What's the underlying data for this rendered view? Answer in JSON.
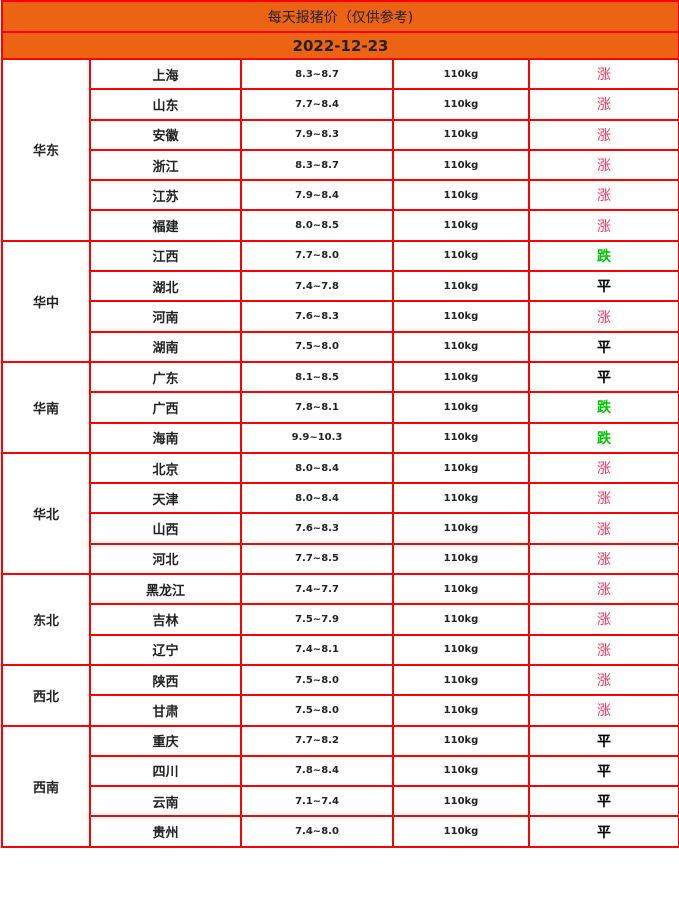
{
  "title": "每天报猪价（仅供参考)",
  "date": "2022-12-23",
  "colors": {
    "header_bg": "#ec6314",
    "border": "#ff0000",
    "up": "#ff3355",
    "down": "#00c800",
    "flat": "#000000"
  },
  "regions": [
    {
      "name": "华东",
      "rows": [
        {
          "province": "上海",
          "price": "8.3~8.7",
          "weight": "110kg",
          "trend": "涨"
        },
        {
          "province": "山东",
          "price": "7.7~8.4",
          "weight": "110kg",
          "trend": "涨"
        },
        {
          "province": "安徽",
          "price": "7.9~8.3",
          "weight": "110kg",
          "trend": "涨"
        },
        {
          "province": "浙江",
          "price": "8.3~8.7",
          "weight": "110kg",
          "trend": "涨"
        },
        {
          "province": "江苏",
          "price": "7.9~8.4",
          "weight": "110kg",
          "trend": "涨"
        },
        {
          "province": "福建",
          "price": "8.0~8.5",
          "weight": "110kg",
          "trend": "涨"
        }
      ]
    },
    {
      "name": "华中",
      "rows": [
        {
          "province": "江西",
          "price": "7.7~8.0",
          "weight": "110kg",
          "trend": "跌"
        },
        {
          "province": "湖北",
          "price": "7.4~7.8",
          "weight": "110kg",
          "trend": "平"
        },
        {
          "province": "河南",
          "price": "7.6~8.3",
          "weight": "110kg",
          "trend": "涨"
        },
        {
          "province": "湖南",
          "price": "7.5~8.0",
          "weight": "110kg",
          "trend": "平"
        }
      ]
    },
    {
      "name": "华南",
      "rows": [
        {
          "province": "广东",
          "price": "8.1~8.5",
          "weight": "110kg",
          "trend": "平"
        },
        {
          "province": "广西",
          "price": "7.8~8.1",
          "weight": "110kg",
          "trend": "跌"
        },
        {
          "province": "海南",
          "price": "9.9~10.3",
          "weight": "110kg",
          "trend": "跌"
        }
      ]
    },
    {
      "name": "华北",
      "rows": [
        {
          "province": "北京",
          "price": "8.0~8.4",
          "weight": "110kg",
          "trend": "涨"
        },
        {
          "province": "天津",
          "price": "8.0~8.4",
          "weight": "110kg",
          "trend": "涨"
        },
        {
          "province": "山西",
          "price": "7.6~8.3",
          "weight": "110kg",
          "trend": "涨"
        },
        {
          "province": "河北",
          "price": "7.7~8.5",
          "weight": "110kg",
          "trend": "涨"
        }
      ]
    },
    {
      "name": "东北",
      "rows": [
        {
          "province": "黑龙江",
          "price": "7.4~7.7",
          "weight": "110kg",
          "trend": "涨"
        },
        {
          "province": "吉林",
          "price": "7.5~7.9",
          "weight": "110kg",
          "trend": "涨"
        },
        {
          "province": "辽宁",
          "price": "7.4~8.1",
          "weight": "110kg",
          "trend": "涨"
        }
      ]
    },
    {
      "name": "西北",
      "rows": [
        {
          "province": "陕西",
          "price": "7.5~8.0",
          "weight": "110kg",
          "trend": "涨"
        },
        {
          "province": "甘肃",
          "price": "7.5~8.0",
          "weight": "110kg",
          "trend": "涨"
        }
      ]
    },
    {
      "name": "西南",
      "rows": [
        {
          "province": "重庆",
          "price": "7.7~8.2",
          "weight": "110kg",
          "trend": "平"
        },
        {
          "province": "四川",
          "price": "7.8~8.4",
          "weight": "110kg",
          "trend": "平"
        },
        {
          "province": "云南",
          "price": "7.1~7.4",
          "weight": "110kg",
          "trend": "平"
        },
        {
          "province": "贵州",
          "price": "7.4~8.0",
          "weight": "110kg",
          "trend": "平"
        }
      ]
    }
  ]
}
